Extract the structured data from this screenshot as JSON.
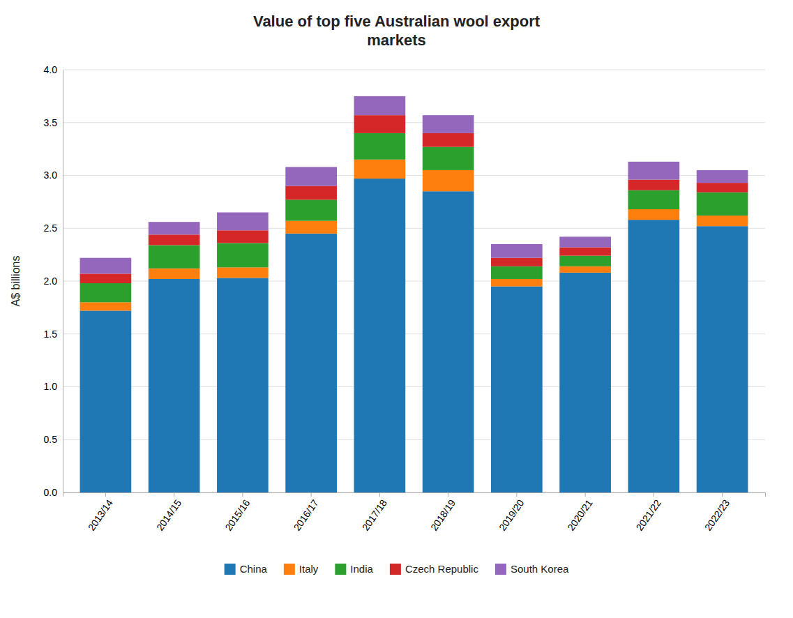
{
  "chart_data": {
    "type": "bar",
    "title": "Value of top five Australian wool export\nmarkets",
    "ylabel": "A$ billions",
    "categories": [
      "2013/14",
      "2014/15",
      "2015/16",
      "2016/17",
      "2017/18",
      "2018/19",
      "2019/20",
      "2020/21",
      "2021/22",
      "2022/23"
    ],
    "series": [
      {
        "name": "China",
        "values": [
          1.72,
          2.02,
          2.03,
          2.45,
          2.97,
          2.85,
          1.95,
          2.08,
          2.58,
          2.52
        ]
      },
      {
        "name": "Italy",
        "values": [
          0.08,
          0.1,
          0.1,
          0.12,
          0.18,
          0.2,
          0.07,
          0.06,
          0.1,
          0.1
        ]
      },
      {
        "name": "India",
        "values": [
          0.18,
          0.22,
          0.23,
          0.2,
          0.25,
          0.22,
          0.12,
          0.1,
          0.18,
          0.22
        ]
      },
      {
        "name": "Czech Republic",
        "values": [
          0.09,
          0.1,
          0.12,
          0.13,
          0.17,
          0.13,
          0.08,
          0.08,
          0.1,
          0.09
        ]
      },
      {
        "name": "South Korea",
        "values": [
          0.15,
          0.12,
          0.17,
          0.18,
          0.18,
          0.17,
          0.13,
          0.1,
          0.17,
          0.12
        ]
      }
    ],
    "stacked": true,
    "ylim": [
      0,
      4.0
    ],
    "yticks": [
      {
        "value": 0,
        "label": "0.0"
      },
      0.5,
      {
        "value": 1,
        "label": "1.0"
      },
      1.5,
      {
        "value": 2,
        "label": "2.0"
      },
      2.5,
      {
        "value": 3,
        "label": "3.0"
      },
      3.5,
      {
        "value": 4,
        "label": "4.0"
      }
    ],
    "grid": true,
    "legend": "bottom"
  }
}
